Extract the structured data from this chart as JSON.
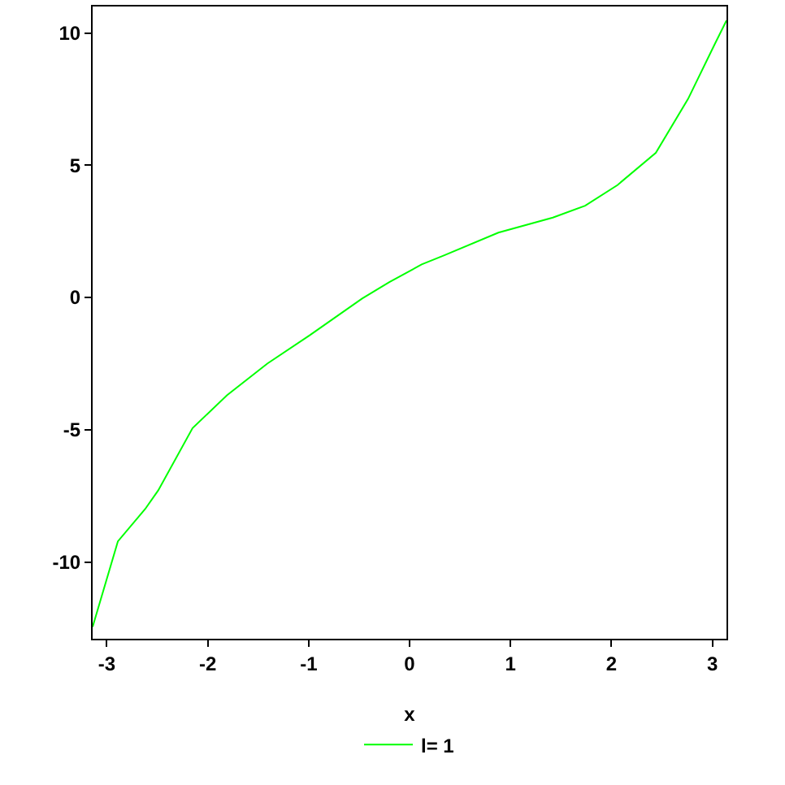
{
  "chart_data": {
    "type": "line",
    "xlabel": "x",
    "x": [
      -3.14,
      -2.89,
      -2.62,
      -2.49,
      -2.15,
      -1.81,
      -1.41,
      -0.99,
      -0.47,
      -0.2,
      0.12,
      0.34,
      0.88,
      1.42,
      1.74,
      2.06,
      2.44,
      2.76,
      3.02,
      3.14
    ],
    "series": [
      {
        "name": "l= 1",
        "color": "#00ff00",
        "values": [
          -12.45,
          -9.22,
          -8.0,
          -7.29,
          -4.94,
          -3.7,
          -2.5,
          -1.43,
          -0.04,
          0.58,
          1.25,
          1.59,
          2.45,
          3.02,
          3.47,
          4.25,
          5.47,
          7.51,
          9.55,
          10.47
        ]
      }
    ],
    "xlim": [
      -3.14,
      3.14
    ],
    "xticks": [
      -3,
      -2,
      -1,
      0,
      1,
      2,
      3
    ],
    "ylim": [
      -12.9,
      11
    ],
    "yticks": [
      -10,
      -5,
      0,
      5,
      10
    ],
    "grid": false,
    "legend": "bottom",
    "marker": "none",
    "line_style": "solid"
  }
}
